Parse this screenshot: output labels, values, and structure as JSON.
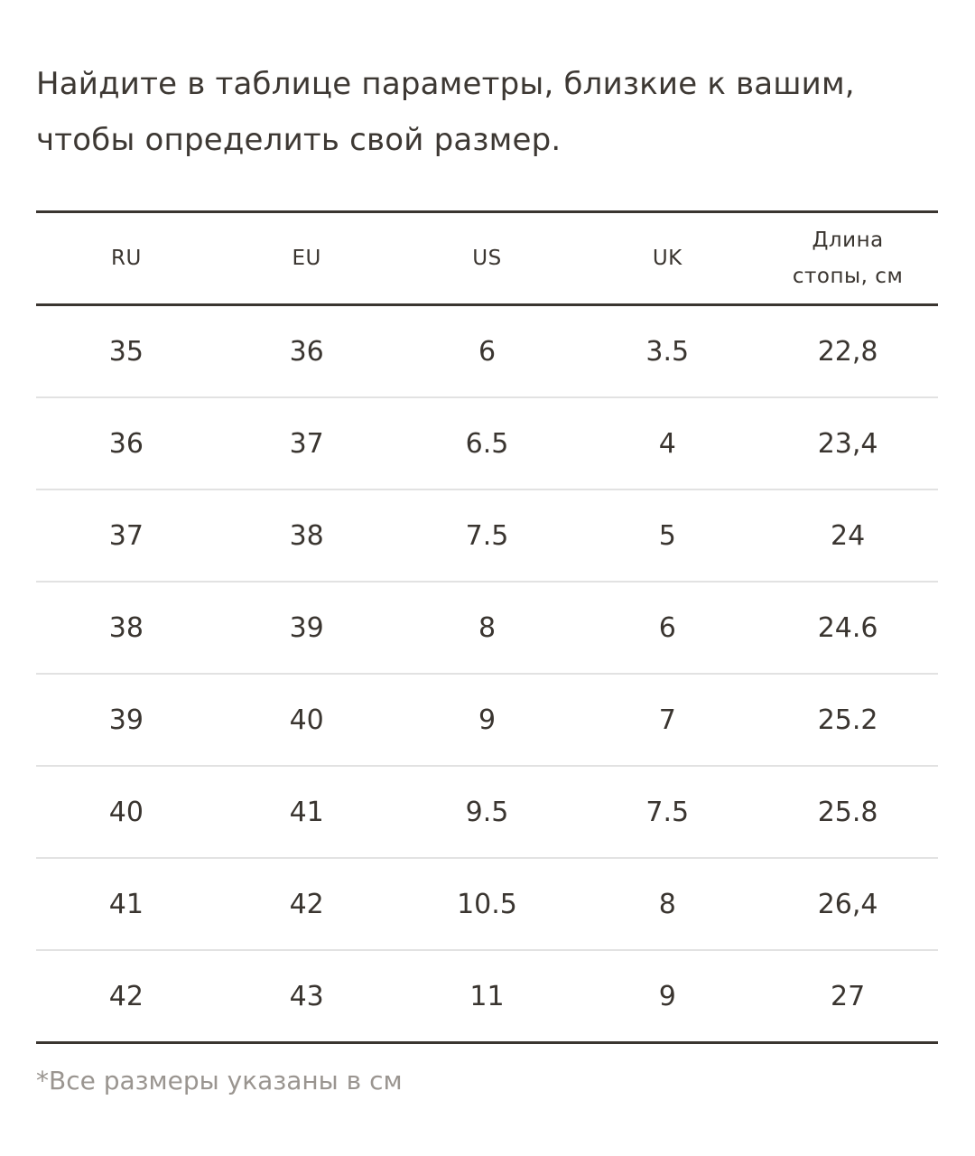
{
  "intro": {
    "line1": "Найдите в таблице параметры, близкие к вашим,",
    "line2": "чтобы определить свой размер."
  },
  "table": {
    "headers": {
      "ru": "RU",
      "eu": "EU",
      "us": "US",
      "uk": "UK",
      "length_line1": "Длина",
      "length_line2": "стопы, см"
    },
    "rows": [
      [
        "35",
        "36",
        "6",
        "3.5",
        "22,8"
      ],
      [
        "36",
        "37",
        "6.5",
        "4",
        "23,4"
      ],
      [
        "37",
        "38",
        "7.5",
        "5",
        "24"
      ],
      [
        "38",
        "39",
        "8",
        "6",
        "24.6"
      ],
      [
        "39",
        "40",
        "9",
        "7",
        "25.2"
      ],
      [
        "40",
        "41",
        "9.5",
        "7.5",
        "25.8"
      ],
      [
        "41",
        "42",
        "10.5",
        "8",
        "26,4"
      ],
      [
        "42",
        "43",
        "11",
        "9",
        "27"
      ]
    ]
  },
  "footnote": "*Все размеры указаны в см"
}
